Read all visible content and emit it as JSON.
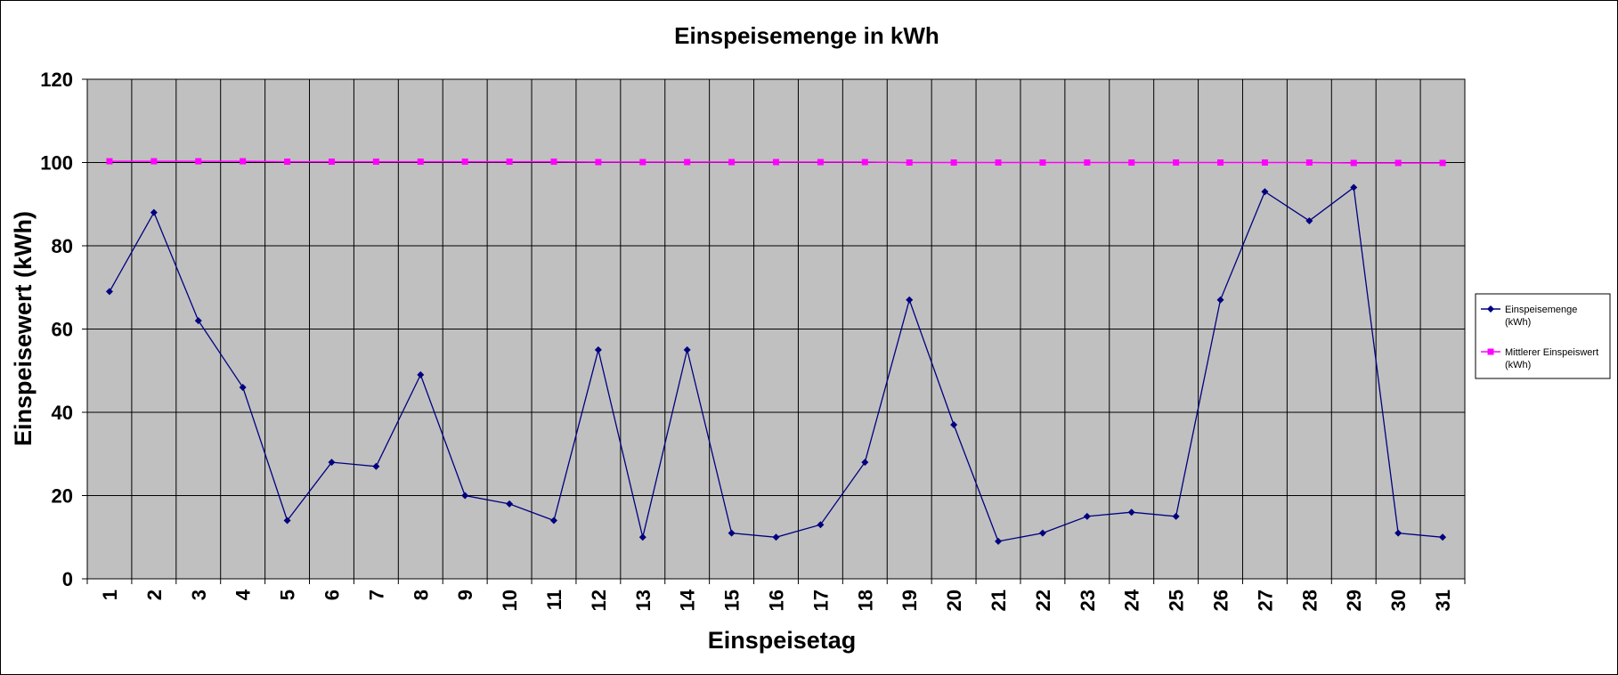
{
  "chart_data": {
    "type": "line",
    "title": "Einspeisemenge in kWh",
    "xlabel": "Einspeisetag",
    "ylabel": "Einspeisewert  (kWh)",
    "ylim": [
      0,
      120
    ],
    "y_ticks": [
      "0",
      "20",
      "40",
      "60",
      "80",
      "100",
      "120"
    ],
    "categories": [
      "1",
      "2",
      "3",
      "4",
      "5",
      "6",
      "7",
      "8",
      "9",
      "10",
      "11",
      "12",
      "13",
      "14",
      "15",
      "16",
      "17",
      "18",
      "19",
      "20",
      "21",
      "22",
      "23",
      "24",
      "25",
      "26",
      "27",
      "28",
      "29",
      "30",
      "31"
    ],
    "grid": true,
    "legend_position": "right",
    "plot_background": "#c0c0c0",
    "series": [
      {
        "name": "Einspeisemenge (kWh)",
        "legend_lines": [
          "Einspeisemenge",
          "(kWh)"
        ],
        "color": "#000080",
        "marker": "diamond",
        "values": [
          69,
          88,
          62,
          46,
          14,
          28,
          27,
          49,
          20,
          18,
          14,
          55,
          10,
          55,
          11,
          10,
          13,
          28,
          67,
          37,
          9,
          11,
          15,
          16,
          15,
          67,
          93,
          86,
          94,
          11,
          10
        ]
      },
      {
        "name": "Mittlerer Einspeiswert (kWh)",
        "legend_lines": [
          "Mittlerer Einspeiswert",
          "(kWh)"
        ],
        "color": "#ff00ff",
        "marker": "square",
        "values": [
          100.3,
          100.3,
          100.3,
          100.3,
          100.2,
          100.2,
          100.2,
          100.2,
          100.2,
          100.2,
          100.2,
          100.1,
          100.1,
          100.1,
          100.1,
          100.1,
          100.1,
          100.1,
          100.0,
          100.0,
          100.0,
          100.0,
          100.0,
          100.0,
          100.0,
          100.0,
          100.0,
          100.0,
          99.9,
          99.9,
          99.9
        ]
      }
    ]
  }
}
